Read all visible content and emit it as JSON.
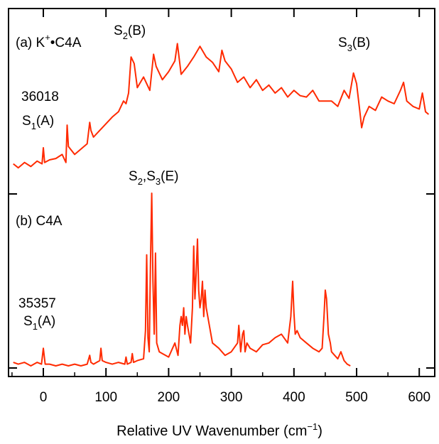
{
  "chart_data": [
    {
      "type": "line",
      "panel": "a",
      "panel_label": "(a) K",
      "panel_label_sup": "+",
      "panel_label_rest": "•C4A",
      "origin_value": "36018",
      "color": "#ff2a00",
      "xlim": [
        -50,
        620
      ],
      "annotations": [
        {
          "base": "S",
          "sub": "1",
          "rest": "(A)",
          "x": 0
        },
        {
          "base": "S",
          "sub": "2",
          "rest": "(B)",
          "x": 135
        },
        {
          "base": "S",
          "sub": "3",
          "rest": "(B)",
          "x": 495
        }
      ],
      "series": [
        {
          "x": [
            -48,
            -40,
            -30,
            -20,
            -10,
            -2,
            0,
            2,
            10,
            20,
            30,
            36,
            38,
            40,
            50,
            60,
            70,
            74,
            76,
            80,
            90,
            100,
            110,
            120,
            128,
            132,
            136,
            140,
            145,
            150,
            160,
            170,
            176,
            180,
            190,
            200,
            210,
            214,
            220,
            230,
            240,
            250,
            260,
            270,
            280,
            285,
            290,
            300,
            310,
            320,
            330,
            340,
            350,
            360,
            370,
            380,
            390,
            400,
            410,
            420,
            430,
            440,
            450,
            460,
            470,
            480,
            488,
            495,
            500,
            505,
            508,
            512,
            520,
            530,
            540,
            550,
            560,
            570,
            575,
            580,
            590,
            600,
            605,
            610,
            615
          ],
          "y": [
            0.05,
            0.02,
            0.06,
            0.03,
            0.07,
            0.05,
            0.17,
            0.06,
            0.08,
            0.09,
            0.12,
            0.06,
            0.34,
            0.18,
            0.12,
            0.16,
            0.2,
            0.36,
            0.3,
            0.25,
            0.3,
            0.35,
            0.4,
            0.44,
            0.52,
            0.5,
            0.58,
            0.85,
            0.8,
            0.62,
            0.7,
            0.6,
            0.87,
            0.78,
            0.68,
            0.74,
            0.82,
            0.95,
            0.72,
            0.78,
            0.85,
            0.93,
            0.85,
            0.81,
            0.74,
            0.9,
            0.82,
            0.76,
            0.66,
            0.7,
            0.62,
            0.68,
            0.6,
            0.64,
            0.58,
            0.62,
            0.55,
            0.6,
            0.56,
            0.55,
            0.6,
            0.52,
            0.52,
            0.52,
            0.48,
            0.6,
            0.54,
            0.73,
            0.65,
            0.45,
            0.32,
            0.4,
            0.48,
            0.45,
            0.55,
            0.52,
            0.5,
            0.6,
            0.66,
            0.52,
            0.48,
            0.46,
            0.58,
            0.44,
            0.42
          ]
        }
      ]
    },
    {
      "type": "line",
      "panel": "b",
      "panel_label": "(b) C4A",
      "origin_value": "35357",
      "color": "#ff2a00",
      "xlim": [
        -50,
        620
      ],
      "annotations": [
        {
          "base": "S",
          "sub": "1",
          "rest": "(A)",
          "x": 0
        },
        {
          "base": "S",
          "sub": "2",
          "rest": ",",
          "base2": "S",
          "sub2": "3",
          "rest2": "(E)",
          "x": 172
        }
      ],
      "series": [
        {
          "x": [
            -48,
            -40,
            -30,
            -20,
            -10,
            -3,
            0,
            3,
            10,
            20,
            30,
            40,
            50,
            60,
            70,
            74,
            76,
            80,
            90,
            92,
            94,
            100,
            110,
            120,
            130,
            132,
            134,
            140,
            142,
            144,
            150,
            160,
            163,
            165,
            167,
            169,
            171,
            173,
            175,
            177,
            179,
            181,
            185,
            190,
            200,
            210,
            215,
            218,
            220,
            222,
            224,
            226,
            228,
            230,
            235,
            238,
            240,
            242,
            244,
            246,
            248,
            250,
            252,
            254,
            256,
            258,
            260,
            265,
            270,
            280,
            290,
            300,
            310,
            312,
            315,
            318,
            320,
            322,
            325,
            330,
            340,
            350,
            360,
            370,
            380,
            390,
            395,
            398,
            400,
            402,
            405,
            410,
            420,
            430,
            440,
            445,
            448,
            450,
            452,
            455,
            458,
            460,
            465,
            470,
            475,
            480,
            485,
            490
          ],
          "y": [
            0.04,
            0.03,
            0.04,
            0.02,
            0.04,
            0.03,
            0.12,
            0.03,
            0.03,
            0.02,
            0.03,
            0.02,
            0.03,
            0.02,
            0.03,
            0.08,
            0.04,
            0.03,
            0.05,
            0.12,
            0.05,
            0.04,
            0.03,
            0.04,
            0.03,
            0.07,
            0.03,
            0.04,
            0.09,
            0.04,
            0.05,
            0.06,
            0.22,
            0.65,
            0.18,
            0.1,
            0.6,
            1.0,
            0.5,
            0.2,
            0.66,
            0.15,
            0.1,
            0.09,
            0.07,
            0.15,
            0.08,
            0.25,
            0.3,
            0.25,
            0.35,
            0.2,
            0.3,
            0.25,
            0.15,
            0.35,
            0.7,
            0.4,
            0.55,
            0.74,
            0.45,
            0.35,
            0.4,
            0.5,
            0.3,
            0.45,
            0.35,
            0.25,
            0.15,
            0.12,
            0.08,
            0.1,
            0.15,
            0.25,
            0.1,
            0.2,
            0.22,
            0.1,
            0.15,
            0.12,
            0.1,
            0.14,
            0.15,
            0.18,
            0.2,
            0.15,
            0.3,
            0.5,
            0.32,
            0.2,
            0.22,
            0.18,
            0.15,
            0.12,
            0.1,
            0.12,
            0.3,
            0.45,
            0.4,
            0.2,
            0.15,
            0.1,
            0.08,
            0.06,
            0.1,
            0.05,
            0.03,
            0.02
          ]
        }
      ]
    }
  ],
  "x_axis": {
    "title_pre": "Relative UV Wavenumber (cm",
    "title_sup": "−1",
    "title_post": ")",
    "ticks": [
      0,
      100,
      200,
      300,
      400,
      500,
      600
    ]
  }
}
